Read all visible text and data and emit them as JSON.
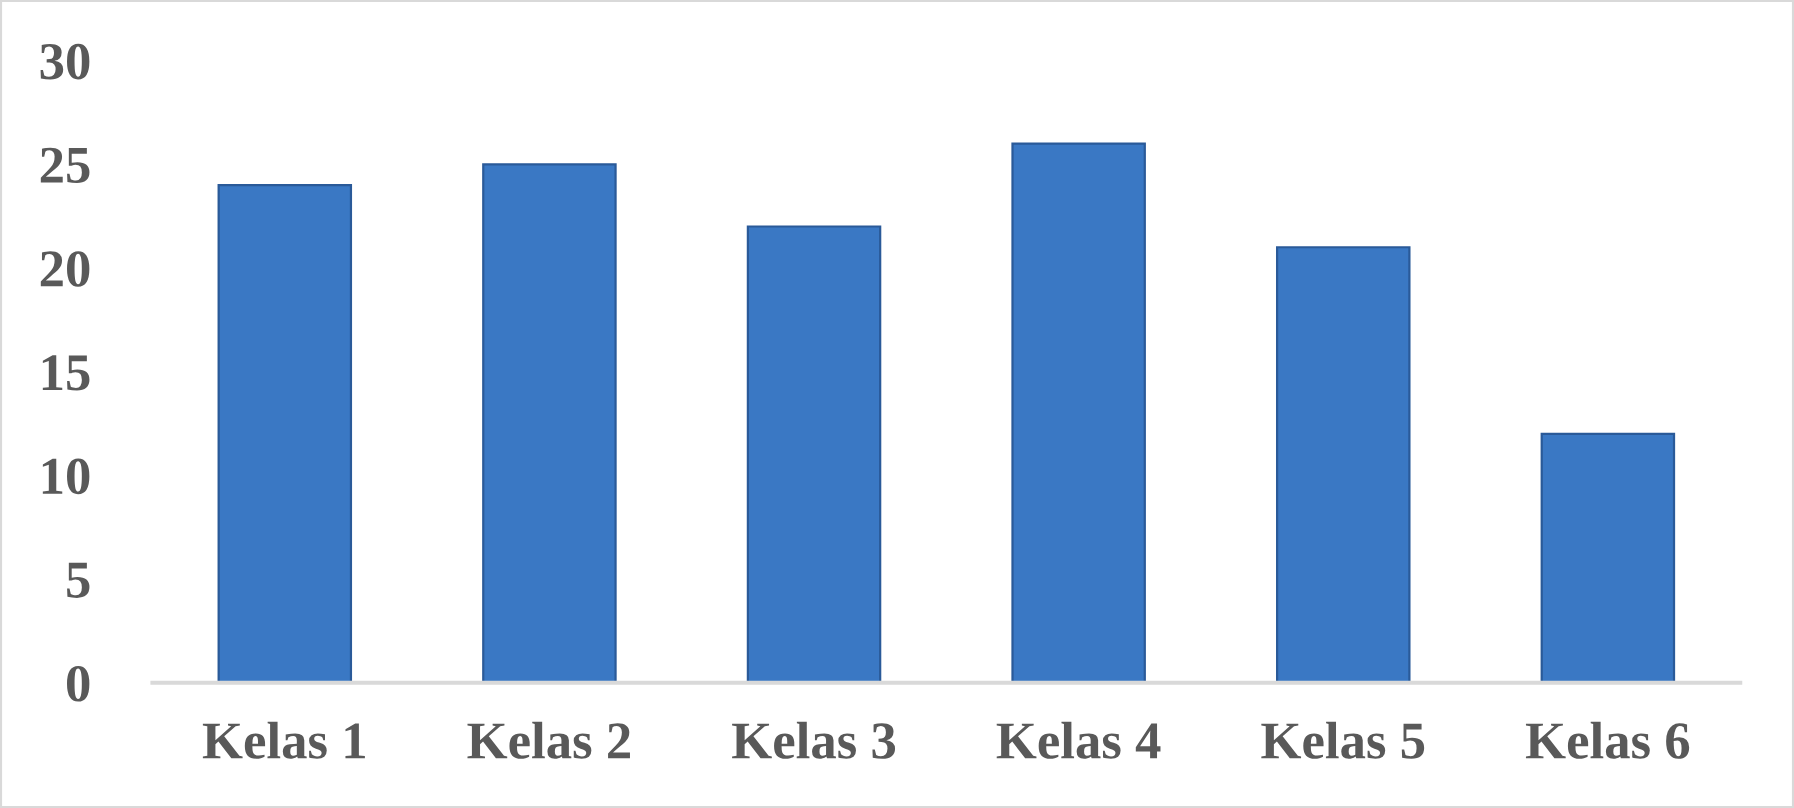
{
  "chart_data": {
    "type": "bar",
    "categories": [
      "Kelas 1",
      "Kelas 2",
      "Kelas 3",
      "Kelas 4",
      "Kelas 5",
      "Kelas 6"
    ],
    "values": [
      24,
      25,
      22,
      26,
      21,
      12
    ],
    "color": "#3a78c4",
    "ylim": [
      0,
      30
    ],
    "yticks": [
      0,
      5,
      10,
      15,
      20,
      25,
      30
    ],
    "grid": false,
    "legend": false
  }
}
